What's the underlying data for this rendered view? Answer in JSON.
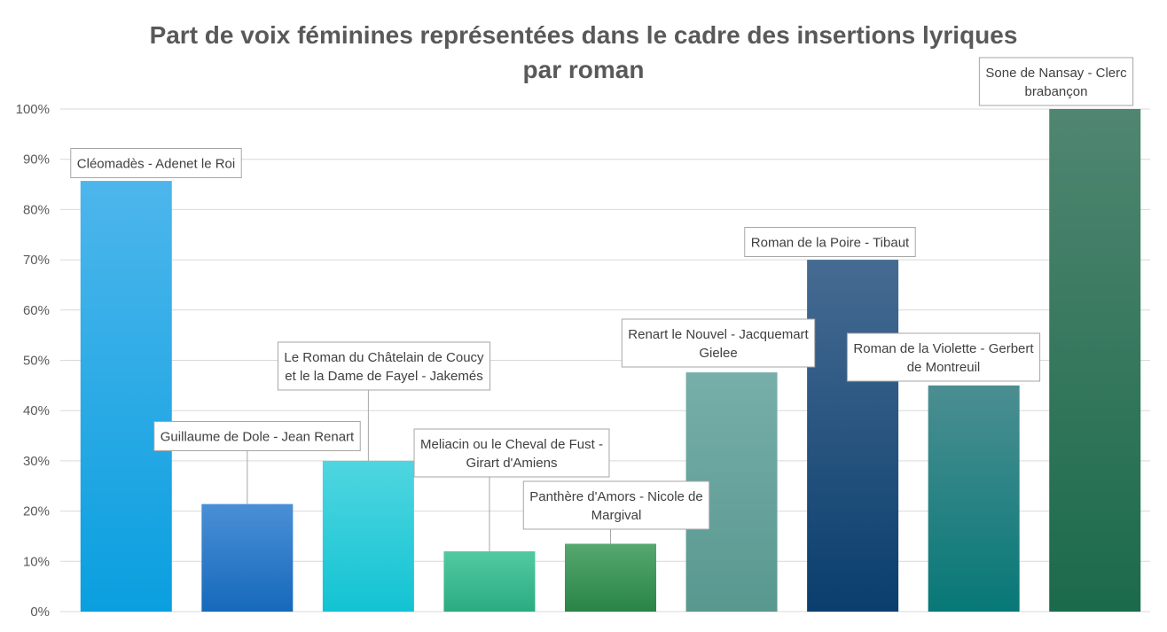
{
  "chart_data": {
    "type": "bar",
    "title_lines": [
      "Part de voix féminines représentées dans le cadre des insertions lyriques",
      "par roman"
    ],
    "xlabel": "",
    "ylabel": "",
    "ylim": [
      0,
      100
    ],
    "y_ticks": [
      0,
      10,
      20,
      30,
      40,
      50,
      60,
      70,
      80,
      90,
      100
    ],
    "y_tick_labels": [
      "0%",
      "10%",
      "20%",
      "30%",
      "40%",
      "50%",
      "60%",
      "70%",
      "80%",
      "90%",
      "100%"
    ],
    "grid": true,
    "legend": "none",
    "categories": [
      "Cléomadès - Adenet le Roi",
      "Guillaume de Dole - Jean Renart",
      "Le Roman du Châtelain de Coucy et le la Dame de Fayel - Jakemés",
      "Meliacin ou le Cheval de Fust - Girart d'Amiens",
      "Panthère d'Amors - Nicole de Margival",
      "Renart le Nouvel - Jacquemart Gielee",
      "Roman de la Poire - Tibaut",
      "Roman de la Violette - Gerbert de Montreuil",
      "Sone de Nansay - Clerc brabançon"
    ],
    "label_lines": [
      [
        "Cléomadès - Adenet le Roi"
      ],
      [
        "Guillaume de Dole - Jean Renart"
      ],
      [
        "Le Roman du Châtelain de Coucy",
        "et le la Dame de Fayel - Jakemés"
      ],
      [
        "Meliacin ou le Cheval de Fust -",
        "Girart d'Amiens"
      ],
      [
        "Panthère d'Amors - Nicole de",
        "Margival"
      ],
      [
        "Renart le Nouvel - Jacquemart",
        "Gielee"
      ],
      [
        "Roman de la Poire - Tibaut"
      ],
      [
        "Roman de la Violette - Gerbert",
        "de Montreuil"
      ],
      [
        "Sone de Nansay - Clerc",
        "brabançon"
      ]
    ],
    "values": [
      85.7,
      21.4,
      30.0,
      12.0,
      13.5,
      47.6,
      70.0,
      45.0,
      100.0
    ],
    "colors": [
      [
        "#4db6ec",
        "#0a9fdf"
      ],
      [
        "#4a8fd6",
        "#1669bb"
      ],
      [
        "#4fd6e0",
        "#13c3d3"
      ],
      [
        "#52caa1",
        "#2bab82"
      ],
      [
        "#55a870",
        "#2a8446"
      ],
      [
        "#77aeaa",
        "#58988f"
      ],
      [
        "#466b92",
        "#0a3e6d"
      ],
      [
        "#4b8e91",
        "#077877"
      ],
      [
        "#508671",
        "#1b6a4b"
      ]
    ],
    "axis_color": "#d9d9d9",
    "tick_color": "#595959",
    "label_border_color": "#a6a6a6"
  }
}
